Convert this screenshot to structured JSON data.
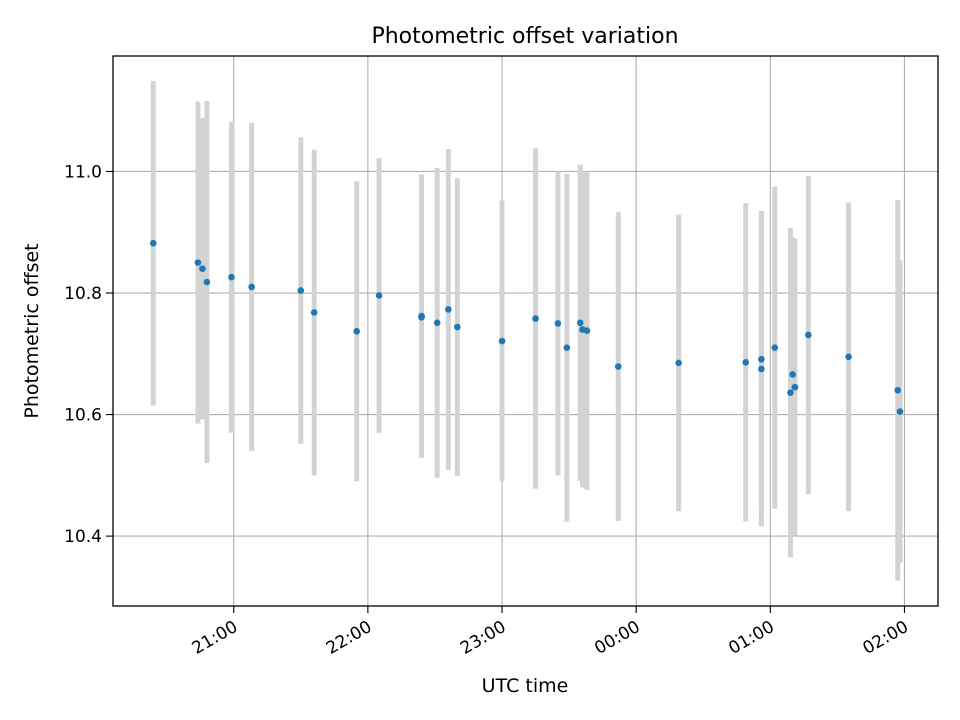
{
  "chart_data": {
    "type": "scatter",
    "title": "Photometric offset variation",
    "xlabel": "UTC time",
    "ylabel": "Photometric offset",
    "x_axis_kind": "time",
    "xlim": [
      "20:06",
      "02:15"
    ],
    "ylim": [
      10.285,
      11.19
    ],
    "x_ticks": [
      {
        "value": "21:00",
        "label": "21:00"
      },
      {
        "value": "22:00",
        "label": "22:00"
      },
      {
        "value": "23:00",
        "label": "23:00"
      },
      {
        "value": "00:00",
        "label": "00:00"
      },
      {
        "value": "01:00",
        "label": "01:00"
      },
      {
        "value": "02:00",
        "label": "02:00"
      }
    ],
    "y_ticks": [
      {
        "value": 10.4,
        "label": "10.4"
      },
      {
        "value": 10.6,
        "label": "10.6"
      },
      {
        "value": 10.8,
        "label": "10.8"
      },
      {
        "value": 11.0,
        "label": "11.0"
      }
    ],
    "grid": true,
    "legend": "none",
    "x_tick_rotation_deg": 30,
    "colors": {
      "points": "#1f77b4",
      "error_bars": "#d3d3d3",
      "grid": "#b0b0b0"
    },
    "points": [
      {
        "time": "20:24",
        "y": 10.882,
        "err": 0.267
      },
      {
        "time": "20:44",
        "y": 10.85,
        "err": 0.265
      },
      {
        "time": "20:46",
        "y": 10.84,
        "err": 0.248
      },
      {
        "time": "20:48",
        "y": 10.818,
        "err": 0.298
      },
      {
        "time": "20:59",
        "y": 10.826,
        "err": 0.256
      },
      {
        "time": "21:08",
        "y": 10.81,
        "err": 0.27
      },
      {
        "time": "21:30",
        "y": 10.804,
        "err": 0.252
      },
      {
        "time": "21:36",
        "y": 10.768,
        "err": 0.268
      },
      {
        "time": "21:55",
        "y": 10.737,
        "err": 0.247
      },
      {
        "time": "22:05",
        "y": 10.796,
        "err": 0.226
      },
      {
        "time": "22:24",
        "y": 10.762,
        "err": 0.233
      },
      {
        "time": "22:24",
        "y": 10.76,
        "err": 0.23
      },
      {
        "time": "22:31",
        "y": 10.751,
        "err": 0.255
      },
      {
        "time": "22:36",
        "y": 10.773,
        "err": 0.264
      },
      {
        "time": "22:40",
        "y": 10.744,
        "err": 0.245
      },
      {
        "time": "23:00",
        "y": 10.721,
        "err": 0.231
      },
      {
        "time": "23:15",
        "y": 10.758,
        "err": 0.28
      },
      {
        "time": "23:25",
        "y": 10.75,
        "err": 0.25
      },
      {
        "time": "23:29",
        "y": 10.71,
        "err": 0.286
      },
      {
        "time": "23:35",
        "y": 10.751,
        "err": 0.26
      },
      {
        "time": "23:36",
        "y": 10.74,
        "err": 0.26
      },
      {
        "time": "23:38",
        "y": 10.738,
        "err": 0.262
      },
      {
        "time": "23:52",
        "y": 10.679,
        "err": 0.254
      },
      {
        "time": "00:19",
        "y": 10.685,
        "err": 0.244
      },
      {
        "time": "00:49",
        "y": 10.686,
        "err": 0.262
      },
      {
        "time": "00:56",
        "y": 10.691,
        "err": 0.244
      },
      {
        "time": "00:56",
        "y": 10.675,
        "err": 0.259
      },
      {
        "time": "01:02",
        "y": 10.71,
        "err": 0.265
      },
      {
        "time": "01:09",
        "y": 10.636,
        "err": 0.271
      },
      {
        "time": "01:10",
        "y": 10.666,
        "err": 0.226
      },
      {
        "time": "01:11",
        "y": 10.645,
        "err": 0.244
      },
      {
        "time": "01:11",
        "y": 10.645,
        "err": 0.241
      },
      {
        "time": "01:17",
        "y": 10.731,
        "err": 0.262
      },
      {
        "time": "01:35",
        "y": 10.695,
        "err": 0.254
      },
      {
        "time": "01:57",
        "y": 10.64,
        "err": 0.313
      },
      {
        "time": "01:58",
        "y": 10.605,
        "err": 0.249
      }
    ]
  }
}
